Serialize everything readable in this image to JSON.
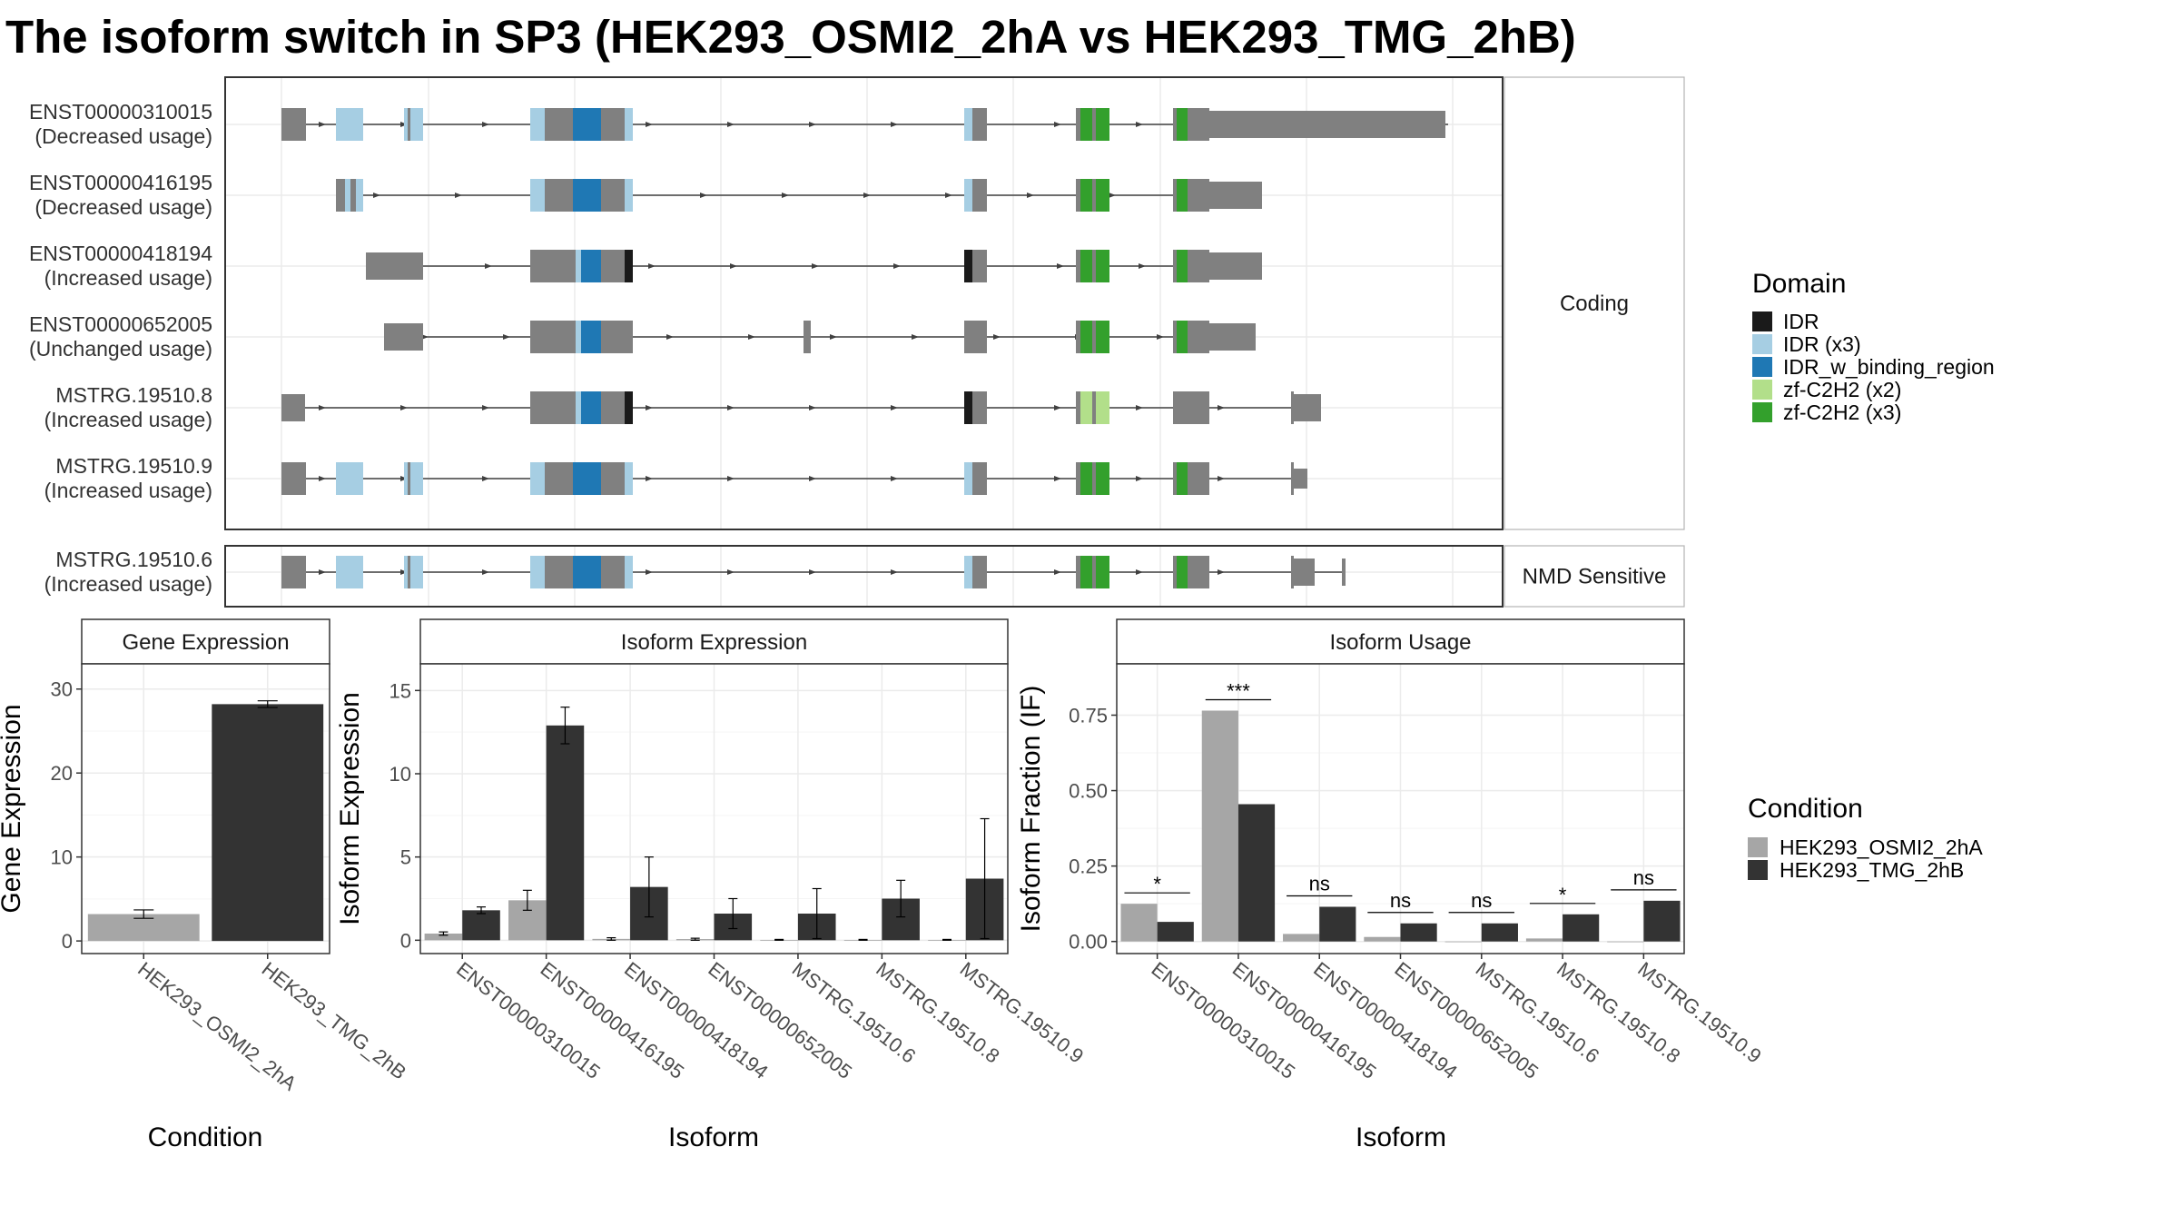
{
  "title": "The isoform switch in SP3 (HEK293_OSMI2_2hA vs HEK293_TMG_2hB)",
  "colors": {
    "exon": "#808080",
    "intron": "#404040",
    "IDR": "#1a1a1a",
    "IDR_x3": "#a6cee3",
    "IDR_w_binding_region": "#1f78b4",
    "zf_C2H2_x2": "#b2df8a",
    "zf_C2H2_x3": "#33a02c",
    "condA": "#a6a6a6",
    "condB": "#333333"
  },
  "transcript_panels": [
    {
      "strip": "Coding",
      "isoforms": [
        {
          "id": "ENST00000310015",
          "status": "(Decreased usage)"
        },
        {
          "id": "ENST00000416195",
          "status": "(Decreased usage)"
        },
        {
          "id": "ENST00000418194",
          "status": "(Increased usage)"
        },
        {
          "id": "ENST00000652005",
          "status": "(Unchanged usage)"
        },
        {
          "id": "MSTRG.19510.8",
          "status": "(Increased usage)"
        },
        {
          "id": "MSTRG.19510.9",
          "status": "(Increased usage)"
        }
      ]
    },
    {
      "strip": "NMD Sensitive",
      "isoforms": [
        {
          "id": "MSTRG.19510.6",
          "status": "(Increased usage)"
        }
      ]
    }
  ],
  "domain_legend": {
    "title": "Domain",
    "items": [
      {
        "label": "IDR",
        "color_key": "IDR"
      },
      {
        "label": "IDR (x3)",
        "color_key": "IDR_x3"
      },
      {
        "label": "IDR_w_binding_region",
        "color_key": "IDR_w_binding_region"
      },
      {
        "label": "zf-C2H2 (x2)",
        "color_key": "zf_C2H2_x2"
      },
      {
        "label": "zf-C2H2 (x3)",
        "color_key": "zf_C2H2_x3"
      }
    ]
  },
  "condition_legend": {
    "title": "Condition",
    "items": [
      "HEK293_OSMI2_2hA",
      "HEK293_TMG_2hB"
    ]
  },
  "chart_data": [
    {
      "type": "bar",
      "title": "Gene Expression",
      "xlabel": "Condition",
      "ylabel": "Gene Expression",
      "ylim": [
        -1.5,
        33
      ],
      "yticks": [
        0,
        10,
        20,
        30
      ],
      "categories": [
        "HEK293_OSMI2_2hA",
        "HEK293_TMG_2hB"
      ],
      "values": [
        3.2,
        28.2
      ],
      "error": [
        [
          2.7,
          3.7
        ],
        [
          27.8,
          28.6
        ]
      ]
    },
    {
      "type": "bar",
      "title": "Isoform Expression",
      "xlabel": "Isoform",
      "ylabel": "Isoform Expression",
      "ylim": [
        -0.8,
        16.6
      ],
      "yticks": [
        0,
        5,
        10,
        15
      ],
      "categories": [
        "ENST00000310015",
        "ENST00000416195",
        "ENST00000418194",
        "ENST00000652005",
        "MSTRG.19510.6",
        "MSTRG.19510.8",
        "MSTRG.19510.9"
      ],
      "series": [
        {
          "name": "HEK293_OSMI2_2hA",
          "values": [
            0.4,
            2.4,
            0.08,
            0.07,
            0.02,
            0.02,
            0.02
          ],
          "error": [
            [
              0.3,
              0.5
            ],
            [
              1.8,
              3.0
            ],
            [
              0.0,
              0.15
            ],
            [
              0.0,
              0.12
            ],
            [
              0.0,
              0.05
            ],
            [
              0.0,
              0.05
            ],
            [
              0.0,
              0.05
            ]
          ]
        },
        {
          "name": "HEK293_TMG_2hB",
          "values": [
            1.8,
            12.9,
            3.2,
            1.6,
            1.6,
            2.5,
            3.7
          ],
          "error": [
            [
              1.6,
              2.0
            ],
            [
              11.8,
              14.0
            ],
            [
              1.4,
              5.0
            ],
            [
              0.7,
              2.5
            ],
            [
              0.1,
              3.1
            ],
            [
              1.4,
              3.6
            ],
            [
              0.1,
              7.3
            ]
          ]
        }
      ]
    },
    {
      "type": "bar",
      "title": "Isoform Usage",
      "xlabel": "Isoform",
      "ylabel": "Isoform Fraction (IF)",
      "ylim": [
        -0.04,
        0.92
      ],
      "yticks": [
        0.0,
        0.25,
        0.5,
        0.75
      ],
      "ytick_labels": [
        "0.00",
        "0.25",
        "0.50",
        "0.75"
      ],
      "categories": [
        "ENST00000310015",
        "ENST00000416195",
        "ENST00000418194",
        "ENST00000652005",
        "MSTRG.19510.6",
        "MSTRG.19510.8",
        "MSTRG.19510.9"
      ],
      "series": [
        {
          "name": "HEK293_OSMI2_2hA",
          "values": [
            0.125,
            0.765,
            0.025,
            0.015,
            0.0,
            0.01,
            0.0
          ]
        },
        {
          "name": "HEK293_TMG_2hB",
          "values": [
            0.065,
            0.455,
            0.115,
            0.06,
            0.06,
            0.09,
            0.135
          ]
        }
      ],
      "significance": [
        "*",
        "***",
        "ns",
        "ns",
        "ns",
        "*",
        "ns"
      ]
    }
  ]
}
